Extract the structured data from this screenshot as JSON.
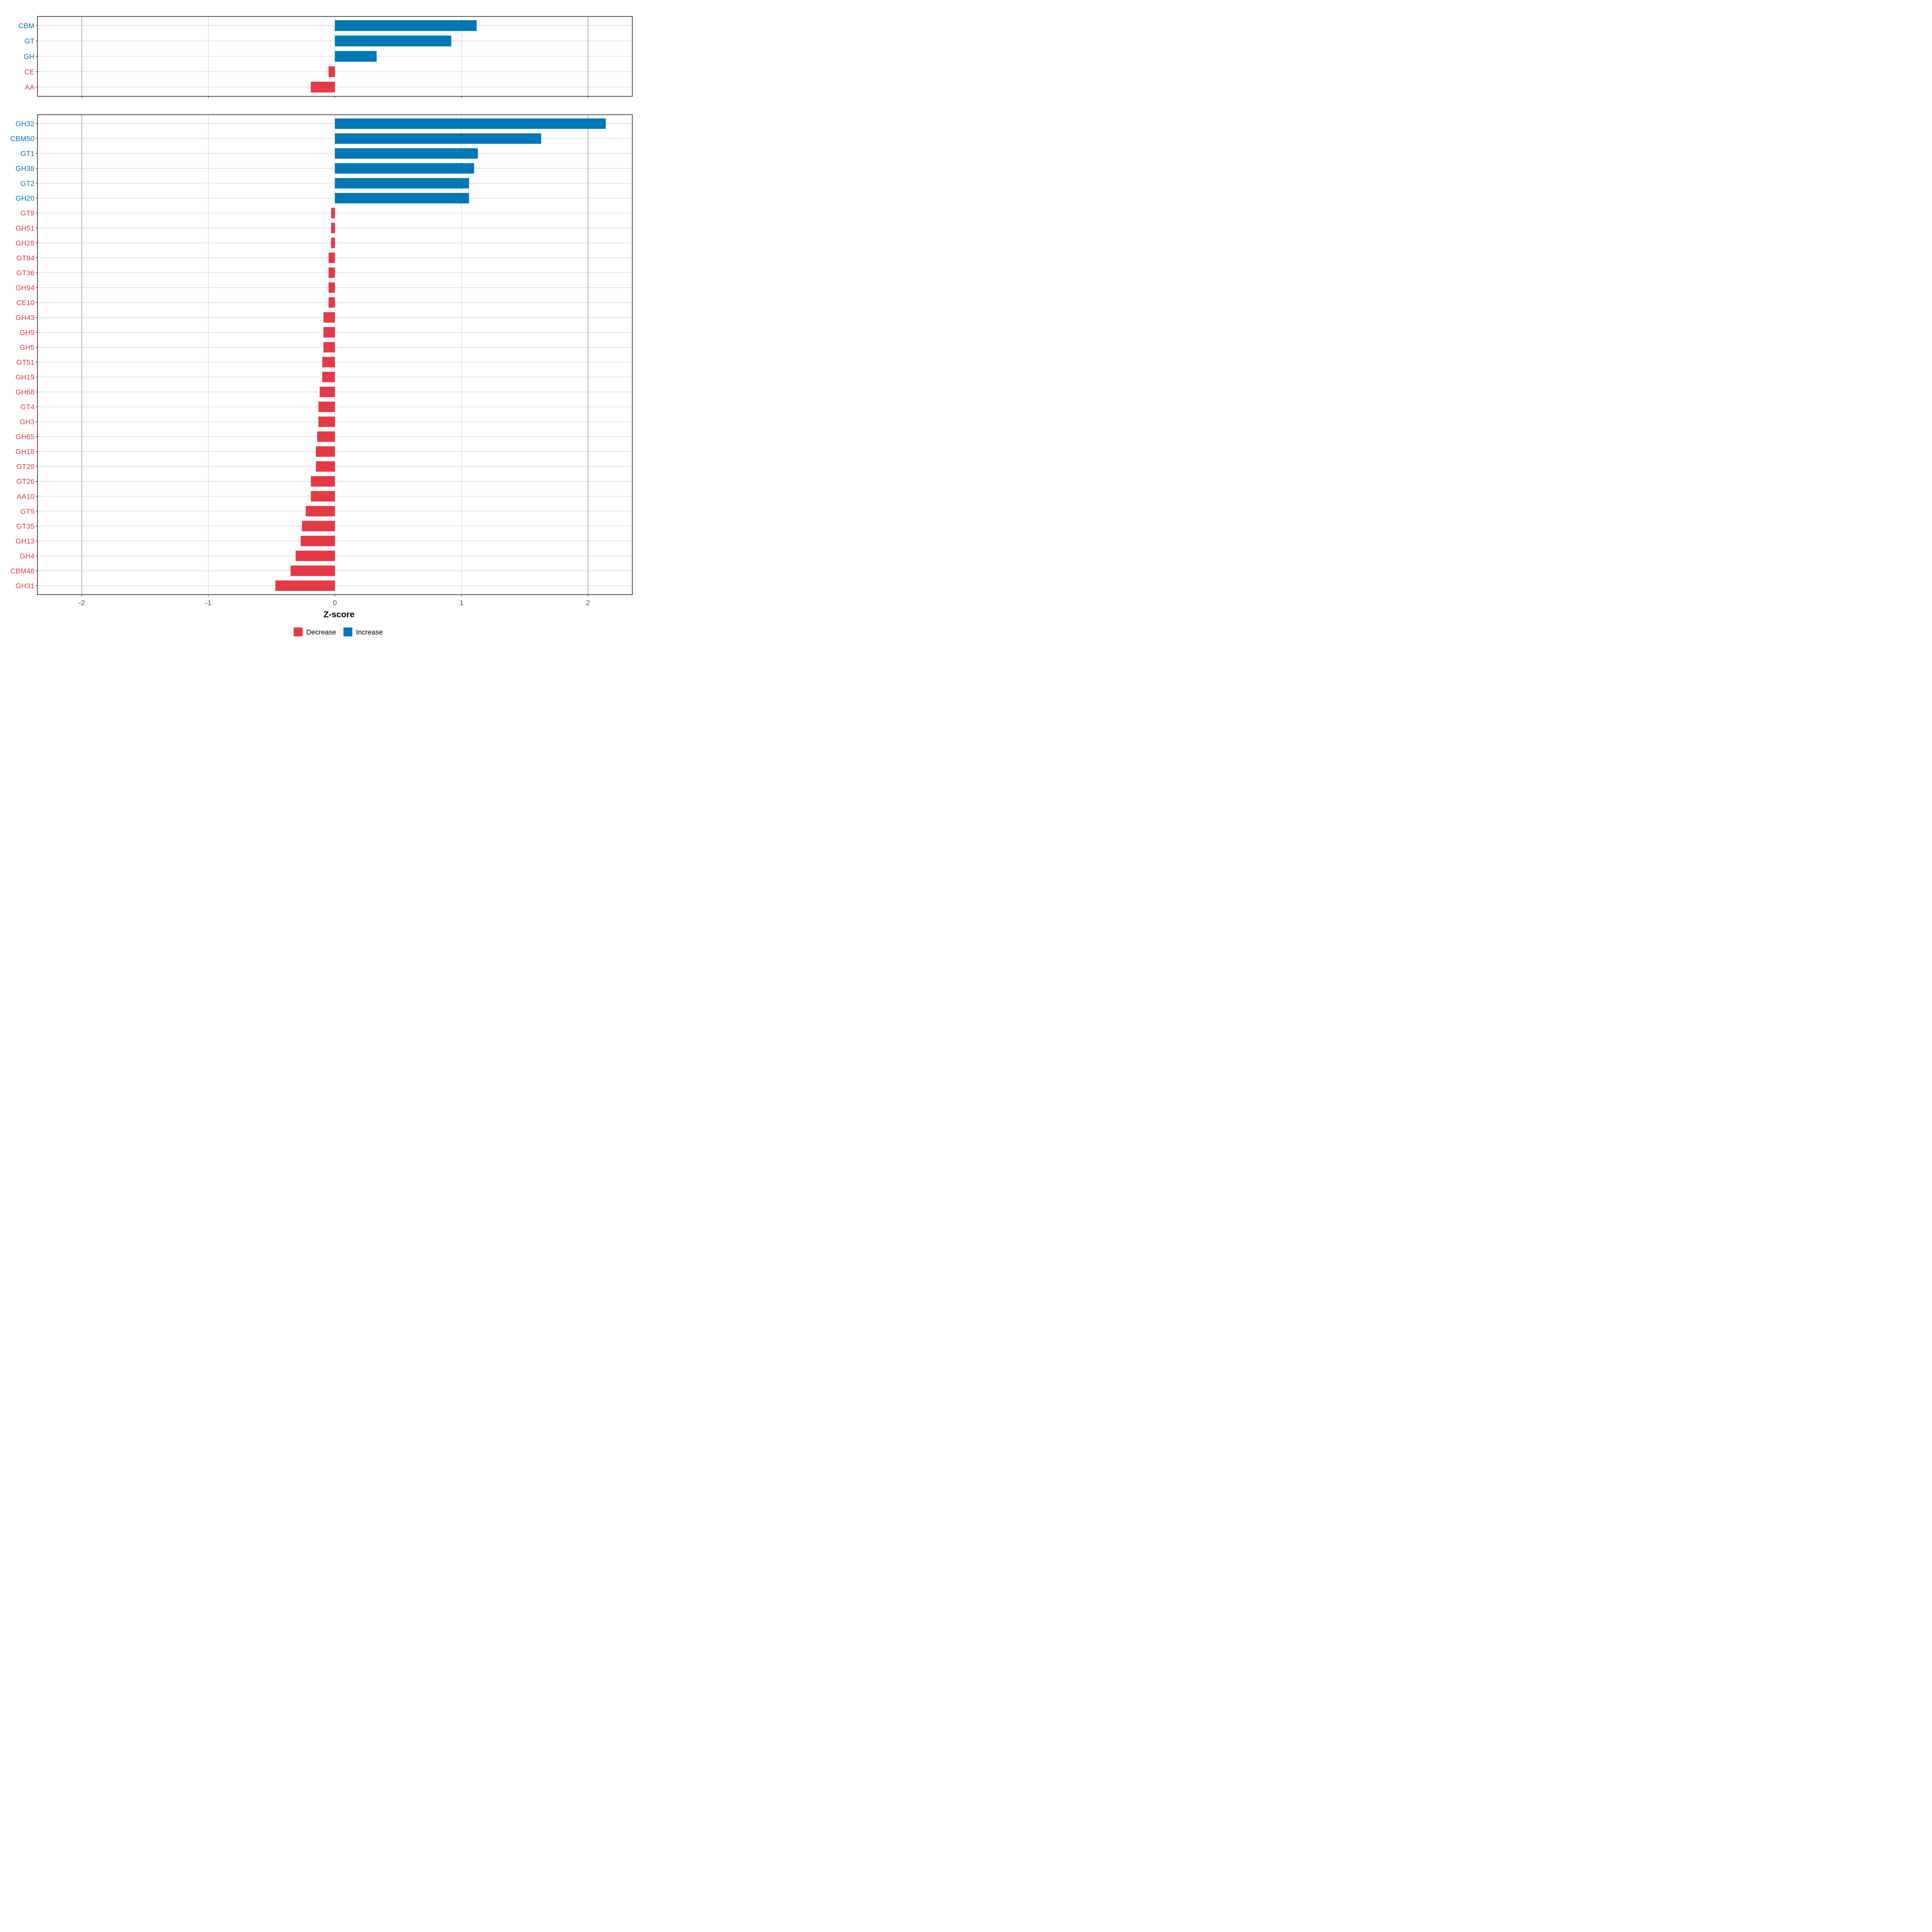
{
  "colors": {
    "increase": "#0077B6",
    "decrease": "#E63946",
    "grid": "#D9D9D9",
    "axis": "#000000",
    "tick_label": "#4D4D4D"
  },
  "chart_data": [
    {
      "type": "bar",
      "orientation": "horizontal",
      "panel": "top",
      "categories": [
        "CBM",
        "GT",
        "GH",
        "CE",
        "AA"
      ],
      "values": [
        1.12,
        0.92,
        0.33,
        -0.05,
        -0.19
      ],
      "xlim": [
        -2.35,
        2.35
      ],
      "xticks": [
        -2,
        -1,
        0,
        1,
        2
      ],
      "reference_lines": [
        -2,
        2
      ]
    },
    {
      "type": "bar",
      "orientation": "horizontal",
      "panel": "bottom",
      "categories": [
        "GH32",
        "CBM50",
        "GT1",
        "GH38",
        "GT2",
        "GH20",
        "GT9",
        "GH51",
        "GH28",
        "GT84",
        "GT36",
        "GH94",
        "CE10",
        "GH43",
        "GH9",
        "GH5",
        "GT51",
        "GH19",
        "GH68",
        "GT4",
        "GH3",
        "GH65",
        "GH18",
        "GT28",
        "GT26",
        "AA10",
        "GT5",
        "GT35",
        "GH13",
        "GH4",
        "CBM48",
        "GH31"
      ],
      "values": [
        2.14,
        1.63,
        1.13,
        1.1,
        1.06,
        1.06,
        -0.03,
        -0.03,
        -0.03,
        -0.05,
        -0.05,
        -0.05,
        -0.05,
        -0.09,
        -0.09,
        -0.09,
        -0.1,
        -0.1,
        -0.12,
        -0.13,
        -0.13,
        -0.14,
        -0.15,
        -0.15,
        -0.19,
        -0.19,
        -0.23,
        -0.26,
        -0.27,
        -0.31,
        -0.35,
        -0.47
      ],
      "xlim": [
        -2.35,
        2.35
      ],
      "xticks": [
        -2,
        -1,
        0,
        1,
        2
      ],
      "tick_labels": [
        "-2",
        "-1",
        "0",
        "1",
        "2"
      ],
      "reference_lines": [
        -2,
        2
      ],
      "xlabel": "Z-score"
    }
  ],
  "legend": {
    "items": [
      {
        "label": "Decrease",
        "color": "#E63946"
      },
      {
        "label": "Increase",
        "color": "#0077B6"
      }
    ]
  }
}
